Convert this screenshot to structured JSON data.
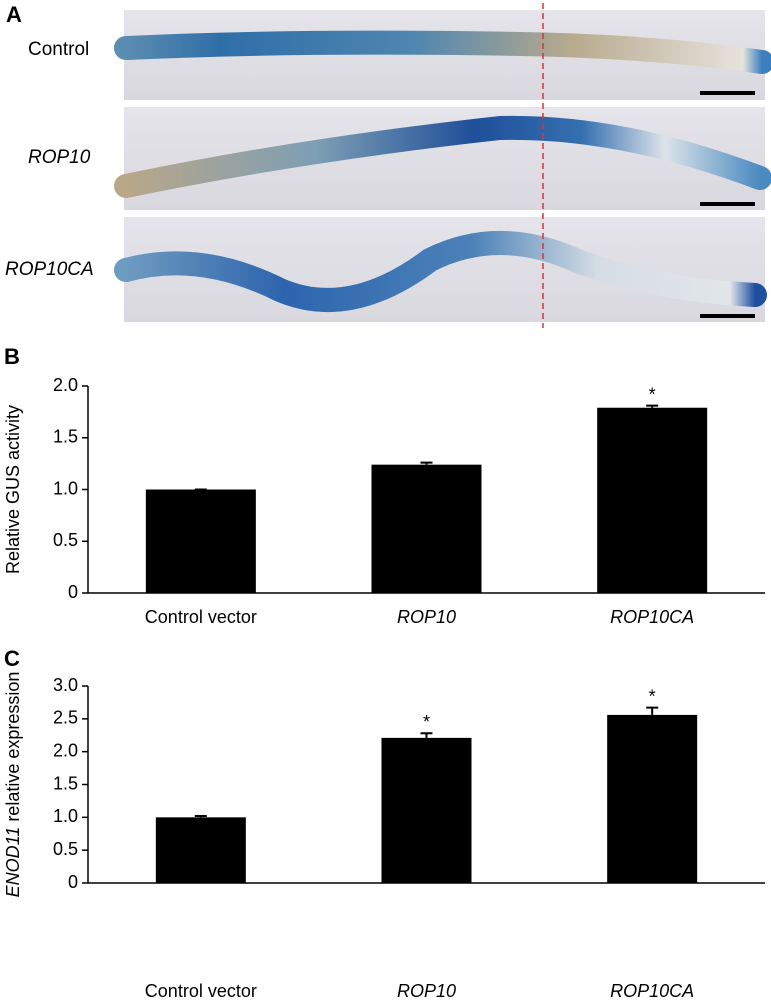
{
  "panel_a": {
    "label": "A",
    "rows": [
      "Control",
      "ROP10",
      "ROP10CA"
    ],
    "italic": [
      false,
      true,
      true
    ]
  },
  "chart_data": [
    {
      "type": "bar",
      "panel_label": "B",
      "ylabel": [
        "Relative GUS activity"
      ],
      "categories": [
        "Control vector",
        "ROP10",
        "ROP10CA"
      ],
      "italic": [
        false,
        true,
        true
      ],
      "values": [
        1.0,
        1.24,
        1.79
      ],
      "errors": [
        0,
        0.02,
        0.02
      ],
      "significance": [
        null,
        null,
        "*"
      ],
      "color": "#000000",
      "ylim": [
        0,
        2
      ],
      "yticks": [
        0,
        0.5,
        {
          "value": 1,
          "label": "1.0"
        },
        1.5,
        {
          "value": 2,
          "label": "2.0"
        }
      ]
    },
    {
      "type": "bar",
      "panel_label": "C",
      "ylabel": [
        "ENOD11",
        " relative expression"
      ],
      "categories": [
        "Control vector",
        "ROP10",
        "ROP10CA"
      ],
      "italic": [
        false,
        true,
        true
      ],
      "values": [
        1.0,
        2.21,
        2.56
      ],
      "errors": [
        0.02,
        0.07,
        0.11
      ],
      "significance": [
        null,
        "*",
        "*"
      ],
      "color": "#000000",
      "ylim": [
        0,
        3
      ],
      "yticks": [
        0,
        0.5,
        {
          "value": 1,
          "label": "1.0"
        },
        1.5,
        {
          "value": 2,
          "label": "2.0"
        },
        2.5,
        {
          "value": 3,
          "label": "3.0"
        }
      ]
    }
  ]
}
